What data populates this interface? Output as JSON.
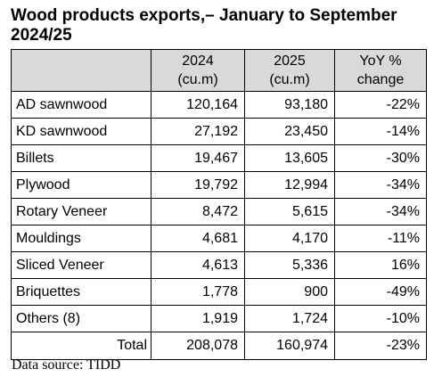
{
  "title": "Wood products exports,– January to September 2024/25",
  "table": {
    "headers": [
      {
        "line1": "",
        "line2": ""
      },
      {
        "line1": "2024",
        "line2": "(cu.m)"
      },
      {
        "line1": "2025",
        "line2": "(cu.m)"
      },
      {
        "line1": "YoY %",
        "line2": "change"
      }
    ],
    "rows": [
      {
        "product": "AD sawnwood",
        "y2024": "120,164",
        "y2025": "93,180",
        "yoy": "-22%"
      },
      {
        "product": "KD sawnwood",
        "y2024": "27,192",
        "y2025": "23,450",
        "yoy": "-14%"
      },
      {
        "product": "Billets",
        "y2024": "19,467",
        "y2025": "13,605",
        "yoy": "-30%"
      },
      {
        "product": "Plywood",
        "y2024": "19,792",
        "y2025": "12,994",
        "yoy": "-34%"
      },
      {
        "product": "Rotary Veneer",
        "y2024": "8,472",
        "y2025": "5,615",
        "yoy": "-34%"
      },
      {
        "product": "Mouldings",
        "y2024": "4,681",
        "y2025": "4,170",
        "yoy": "-11%"
      },
      {
        "product": "Sliced Veneer",
        "y2024": "4,613",
        "y2025": "5,336",
        "yoy": "16%"
      },
      {
        "product": "Briquettes",
        "y2024": "1,778",
        "y2025": "900",
        "yoy": "-49%"
      },
      {
        "product": "Others (8)",
        "y2024": "1,919",
        "y2025": "1,724",
        "yoy": "-10%"
      }
    ],
    "total": {
      "label": "Total",
      "y2024": "208,078",
      "y2025": "160,974",
      "yoy": "-23%"
    }
  },
  "source": "Data source: TIDD",
  "colors": {
    "header_background": "#d9d9d9",
    "border": "#000000",
    "text": "#000000"
  }
}
